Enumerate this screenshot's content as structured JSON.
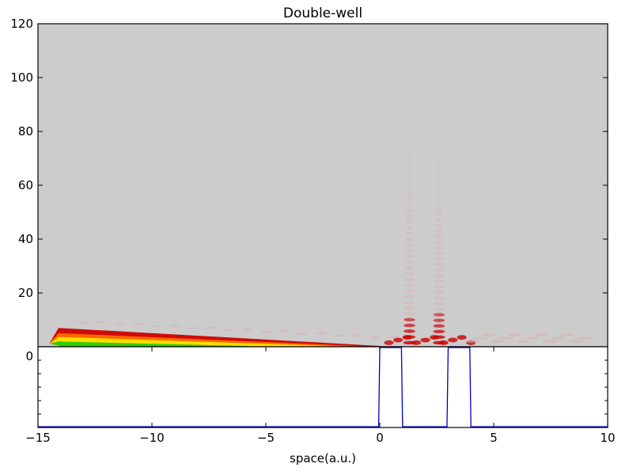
{
  "chart_data": [
    {
      "type": "heatmap",
      "title": "Double-well",
      "xlabel": "",
      "ylabel": "",
      "xlim": [
        -15,
        10
      ],
      "ylim": [
        0,
        120
      ],
      "yticks": [
        "0",
        "20",
        "40",
        "60",
        "80",
        "100",
        "120"
      ],
      "grid": false,
      "background_color": "#cccccc",
      "colormap": [
        "#cccccc",
        "#d9b3b3",
        "#cc0000",
        "#ff6600",
        "#ffdd00",
        "#33cc00"
      ],
      "features": [
        {
          "name": "packet",
          "x_start": -14.5,
          "x_end": 0,
          "t_start": 7,
          "t_end": 0
        },
        {
          "name": "tunneling-left-well",
          "x_center": 1.3,
          "t_max": 72
        },
        {
          "name": "tunneling-right-well",
          "x_center": 2.6,
          "t_max": 70
        },
        {
          "name": "transmitted-tail",
          "x_start": 4,
          "x_end": 9,
          "t_max": 5
        }
      ]
    },
    {
      "type": "line",
      "xlabel": "space(a.u.)",
      "ylabel": "",
      "xlim": [
        -15,
        10
      ],
      "xticks": [
        "−15",
        "−10",
        "−5",
        "0",
        "5",
        "10"
      ],
      "xtick_values": [
        -15,
        -10,
        -5,
        0,
        5,
        10
      ],
      "yticks": [
        "0"
      ],
      "series": [
        {
          "color": "#0000cc",
          "x": [
            -15,
            -0.05,
            0.0,
            0.95,
            1.0,
            2.95,
            3.0,
            3.95,
            4.0,
            10
          ],
          "y": [
            0,
            0,
            1,
            1,
            0,
            0,
            1,
            1,
            0,
            0
          ]
        }
      ]
    }
  ]
}
